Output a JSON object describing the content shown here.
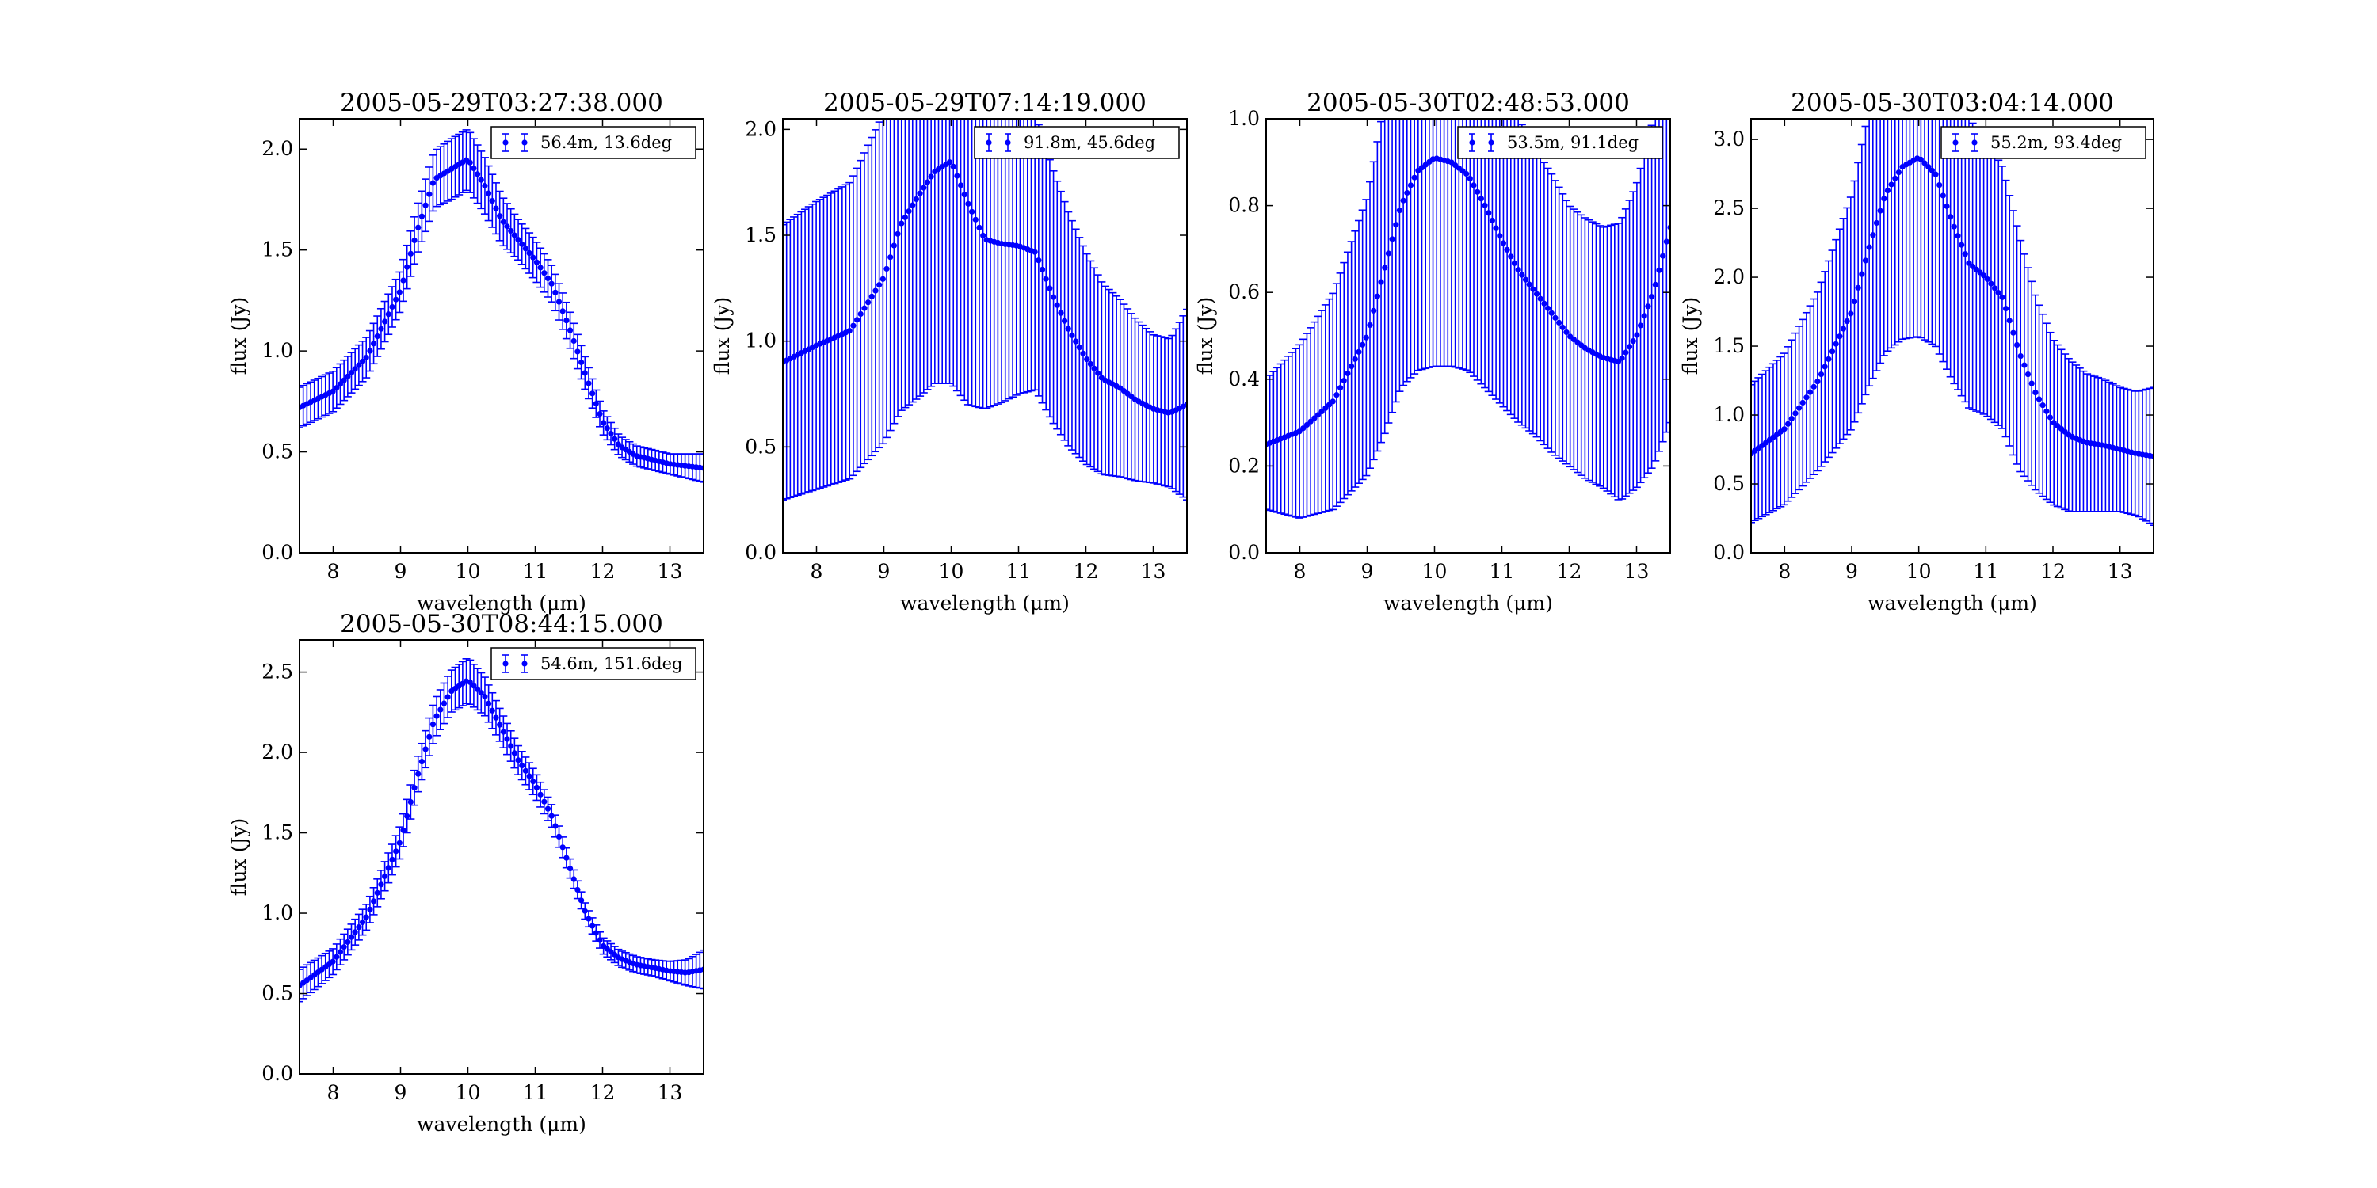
{
  "figure": {
    "background": "#ffffff",
    "series_color": "#0000ff"
  },
  "chart_data": [
    {
      "type": "scatter",
      "title": "2005-05-29T03:27:38.000",
      "xlabel": "wavelength (μm)",
      "ylabel": "flux (Jy)",
      "xlim": [
        7.5,
        13.5
      ],
      "ylim": [
        0,
        2.15
      ],
      "xticks": [
        "8",
        "9",
        "10",
        "11",
        "12",
        "13"
      ],
      "yticks": [
        "0.0",
        "0.5",
        "1.0",
        "1.5",
        "2.0"
      ],
      "legend": "56.4m, 13.6deg",
      "legend_position": "upper right",
      "grid": false,
      "series": [
        {
          "name": "56.4m, 13.6deg",
          "x": [
            7.5,
            8.0,
            8.5,
            9.0,
            9.25,
            9.5,
            9.75,
            10.0,
            10.25,
            10.5,
            10.75,
            11.0,
            11.25,
            11.5,
            11.75,
            12.0,
            12.25,
            12.5,
            12.75,
            13.0,
            13.25,
            13.5
          ],
          "y": [
            0.72,
            0.8,
            0.97,
            1.3,
            1.6,
            1.85,
            1.9,
            1.95,
            1.82,
            1.65,
            1.55,
            1.45,
            1.33,
            1.12,
            0.88,
            0.65,
            0.53,
            0.48,
            0.46,
            0.44,
            0.43,
            0.42
          ],
          "err": [
            0.1,
            0.1,
            0.1,
            0.1,
            0.12,
            0.14,
            0.15,
            0.15,
            0.14,
            0.12,
            0.1,
            0.1,
            0.09,
            0.09,
            0.08,
            0.06,
            0.05,
            0.05,
            0.05,
            0.05,
            0.06,
            0.07
          ]
        }
      ]
    },
    {
      "type": "scatter",
      "title": "2005-05-29T07:14:19.000",
      "xlabel": "wavelength (μm)",
      "ylabel": "flux (Jy)",
      "xlim": [
        7.5,
        13.5
      ],
      "ylim": [
        0,
        2.05
      ],
      "xticks": [
        "8",
        "9",
        "10",
        "11",
        "12",
        "13"
      ],
      "yticks": [
        "0.0",
        "0.5",
        "1.0",
        "1.5",
        "2.0"
      ],
      "legend": "91.8m, 45.6deg",
      "legend_position": "upper right",
      "grid": false,
      "series": [
        {
          "name": "91.8m, 45.6deg",
          "x": [
            7.5,
            8.0,
            8.5,
            9.0,
            9.25,
            9.5,
            9.75,
            10.0,
            10.25,
            10.5,
            10.75,
            11.0,
            11.25,
            11.5,
            11.75,
            12.0,
            12.25,
            12.5,
            12.75,
            13.0,
            13.25,
            13.5
          ],
          "y": [
            0.9,
            0.98,
            1.05,
            1.3,
            1.55,
            1.68,
            1.8,
            1.85,
            1.65,
            1.48,
            1.46,
            1.45,
            1.42,
            1.22,
            1.05,
            0.92,
            0.82,
            0.78,
            0.72,
            0.68,
            0.66,
            0.7
          ],
          "err": [
            0.65,
            0.68,
            0.7,
            0.78,
            0.88,
            0.95,
            1.0,
            1.05,
            0.95,
            0.8,
            0.75,
            0.7,
            0.65,
            0.6,
            0.55,
            0.5,
            0.45,
            0.42,
            0.38,
            0.35,
            0.35,
            0.45
          ]
        }
      ]
    },
    {
      "type": "scatter",
      "title": "2005-05-30T02:48:53.000",
      "xlabel": "wavelength (μm)",
      "ylabel": "flux (Jy)",
      "xlim": [
        7.5,
        13.5
      ],
      "ylim": [
        0,
        1.0
      ],
      "xticks": [
        "8",
        "9",
        "10",
        "11",
        "12",
        "13"
      ],
      "yticks": [
        "0.0",
        "0.2",
        "0.4",
        "0.6",
        "0.8",
        "1.0"
      ],
      "legend": "53.5m, 91.1deg",
      "legend_position": "upper right",
      "grid": false,
      "series": [
        {
          "name": "53.5m, 91.1deg",
          "x": [
            7.5,
            8.0,
            8.5,
            9.0,
            9.25,
            9.5,
            9.75,
            10.0,
            10.25,
            10.5,
            10.75,
            11.0,
            11.25,
            11.5,
            11.75,
            12.0,
            12.25,
            12.5,
            12.75,
            13.0,
            13.25,
            13.5
          ],
          "y": [
            0.25,
            0.28,
            0.35,
            0.5,
            0.65,
            0.8,
            0.88,
            0.91,
            0.9,
            0.87,
            0.8,
            0.72,
            0.65,
            0.6,
            0.55,
            0.5,
            0.47,
            0.45,
            0.44,
            0.5,
            0.6,
            0.75
          ],
          "err": [
            0.15,
            0.2,
            0.25,
            0.32,
            0.38,
            0.42,
            0.46,
            0.48,
            0.47,
            0.45,
            0.42,
            0.38,
            0.35,
            0.33,
            0.32,
            0.3,
            0.3,
            0.3,
            0.32,
            0.35,
            0.4,
            0.45
          ]
        }
      ]
    },
    {
      "type": "scatter",
      "title": "2005-05-30T03:04:14.000",
      "xlabel": "wavelength (μm)",
      "ylabel": "flux (Jy)",
      "xlim": [
        7.5,
        13.5
      ],
      "ylim": [
        0,
        3.15
      ],
      "xticks": [
        "8",
        "9",
        "10",
        "11",
        "12",
        "13"
      ],
      "yticks": [
        "0.0",
        "0.5",
        "1.0",
        "1.5",
        "2.0",
        "2.5",
        "3.0"
      ],
      "legend": "55.2m, 93.4deg",
      "legend_position": "upper right",
      "grid": false,
      "series": [
        {
          "name": "55.2m, 93.4deg",
          "x": [
            7.5,
            8.0,
            8.5,
            9.0,
            9.25,
            9.5,
            9.75,
            10.0,
            10.25,
            10.5,
            10.75,
            11.0,
            11.25,
            11.5,
            11.75,
            12.0,
            12.25,
            12.5,
            12.75,
            13.0,
            13.25,
            13.5
          ],
          "y": [
            0.72,
            0.9,
            1.25,
            1.75,
            2.2,
            2.6,
            2.8,
            2.87,
            2.75,
            2.4,
            2.1,
            2.0,
            1.85,
            1.45,
            1.15,
            0.95,
            0.85,
            0.8,
            0.78,
            0.75,
            0.72,
            0.7
          ],
          "err": [
            0.5,
            0.55,
            0.65,
            0.85,
            1.0,
            1.15,
            1.25,
            1.3,
            1.25,
            1.15,
            1.05,
            1.0,
            0.95,
            0.85,
            0.7,
            0.6,
            0.55,
            0.5,
            0.48,
            0.45,
            0.45,
            0.5
          ]
        }
      ]
    },
    {
      "type": "scatter",
      "title": "2005-05-30T08:44:15.000",
      "xlabel": "wavelength (μm)",
      "ylabel": "flux (Jy)",
      "xlim": [
        7.5,
        13.5
      ],
      "ylim": [
        0,
        2.7
      ],
      "xticks": [
        "8",
        "9",
        "10",
        "11",
        "12",
        "13"
      ],
      "yticks": [
        "0.0",
        "0.5",
        "1.0",
        "1.5",
        "2.0",
        "2.5"
      ],
      "legend": "54.6m, 151.6deg",
      "legend_position": "upper right",
      "grid": false,
      "series": [
        {
          "name": "54.6m, 151.6deg",
          "x": [
            7.5,
            8.0,
            8.5,
            9.0,
            9.25,
            9.5,
            9.75,
            10.0,
            10.25,
            10.5,
            10.75,
            11.0,
            11.25,
            11.5,
            11.75,
            12.0,
            12.25,
            12.5,
            12.75,
            13.0,
            13.25,
            13.5
          ],
          "y": [
            0.55,
            0.7,
            0.98,
            1.45,
            1.85,
            2.2,
            2.38,
            2.45,
            2.35,
            2.15,
            1.95,
            1.8,
            1.6,
            1.3,
            1.0,
            0.8,
            0.72,
            0.68,
            0.66,
            0.64,
            0.63,
            0.65
          ],
          "err": [
            0.1,
            0.08,
            0.08,
            0.1,
            0.11,
            0.12,
            0.13,
            0.14,
            0.12,
            0.1,
            0.09,
            0.08,
            0.07,
            0.06,
            0.05,
            0.05,
            0.05,
            0.05,
            0.05,
            0.06,
            0.08,
            0.12
          ]
        }
      ]
    }
  ]
}
